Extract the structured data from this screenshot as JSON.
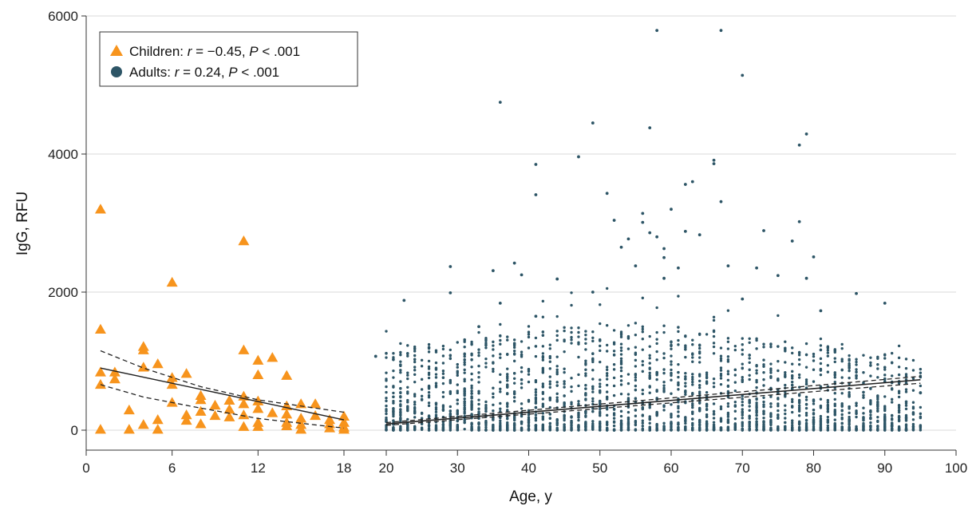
{
  "chart_data": {
    "type": "scatter",
    "xlabel": "Age, y",
    "ylabel": "IgG, RFU",
    "x_ticks": [
      {
        "value": 0,
        "label": "0"
      },
      {
        "value": 6,
        "label": "6"
      },
      {
        "value": 12,
        "label": "12"
      },
      {
        "value": 18,
        "label": "18"
      },
      {
        "value": 20,
        "label": "20"
      },
      {
        "value": 30,
        "label": "30"
      },
      {
        "value": 40,
        "label": "40"
      },
      {
        "value": 50,
        "label": "50"
      },
      {
        "value": 60,
        "label": "60"
      },
      {
        "value": 70,
        "label": "70"
      },
      {
        "value": 80,
        "label": "80"
      },
      {
        "value": 90,
        "label": "90"
      },
      {
        "value": 100,
        "label": "100"
      }
    ],
    "y_ticks": [
      {
        "value": 0,
        "label": "0"
      },
      {
        "value": 2000,
        "label": "2000"
      },
      {
        "value": 4000,
        "label": "4000"
      },
      {
        "value": 6000,
        "label": "6000"
      }
    ],
    "xlim": [
      0,
      100
    ],
    "ylim": [
      -250,
      6000
    ],
    "grid": "horizontal",
    "legend_position": "top-left",
    "colors": {
      "children": "#F7941D",
      "adults": "#2D5566",
      "grid": "#d9d9d9"
    },
    "legend": [
      {
        "marker": "triangle",
        "color": "#F7941D",
        "name": "Children",
        "stat_r_label": "r",
        "stat_r": " = −0.45, ",
        "stat_p_label": "P",
        "stat_p": " < .001"
      },
      {
        "marker": "circle",
        "color": "#2D5566",
        "name": "Adults",
        "stat_r_label": "r",
        "stat_r": " = 0.24, ",
        "stat_p_label": "P",
        "stat_p": " < .001"
      }
    ],
    "series": [
      {
        "name": "Children",
        "marker": "triangle",
        "points": [
          [
            1,
            3200
          ],
          [
            1,
            1460
          ],
          [
            1,
            840
          ],
          [
            1,
            660
          ],
          [
            1,
            10
          ],
          [
            2,
            840
          ],
          [
            2,
            740
          ],
          [
            3,
            290
          ],
          [
            3,
            10
          ],
          [
            4,
            1210
          ],
          [
            4,
            1160
          ],
          [
            4,
            910
          ],
          [
            4,
            80
          ],
          [
            5,
            960
          ],
          [
            5,
            150
          ],
          [
            5,
            10
          ],
          [
            6,
            2140
          ],
          [
            6,
            760
          ],
          [
            6,
            660
          ],
          [
            6,
            400
          ],
          [
            7,
            820
          ],
          [
            7,
            220
          ],
          [
            7,
            140
          ],
          [
            8,
            500
          ],
          [
            8,
            440
          ],
          [
            8,
            270
          ],
          [
            8,
            90
          ],
          [
            9,
            360
          ],
          [
            9,
            210
          ],
          [
            10,
            430
          ],
          [
            10,
            300
          ],
          [
            10,
            190
          ],
          [
            11,
            2740
          ],
          [
            11,
            1160
          ],
          [
            11,
            490
          ],
          [
            11,
            380
          ],
          [
            11,
            220
          ],
          [
            11,
            50
          ],
          [
            12,
            1010
          ],
          [
            12,
            800
          ],
          [
            12,
            420
          ],
          [
            12,
            310
          ],
          [
            12,
            110
          ],
          [
            12,
            50
          ],
          [
            13,
            1050
          ],
          [
            13,
            250
          ],
          [
            14,
            790
          ],
          [
            14,
            350
          ],
          [
            14,
            230
          ],
          [
            14,
            110
          ],
          [
            14,
            60
          ],
          [
            15,
            380
          ],
          [
            15,
            170
          ],
          [
            15,
            80
          ],
          [
            15,
            10
          ],
          [
            16,
            380
          ],
          [
            16,
            210
          ],
          [
            17,
            150
          ],
          [
            17,
            90
          ],
          [
            17,
            30
          ],
          [
            18,
            200
          ],
          [
            18,
            110
          ],
          [
            18,
            40
          ],
          [
            18,
            10
          ]
        ],
        "fit": {
          "x": [
            1,
            18
          ],
          "y": [
            900,
            150
          ]
        },
        "ci_upper": {
          "x": [
            1,
            4,
            8,
            12,
            18
          ],
          "y": [
            1150,
            900,
            630,
            440,
            260
          ]
        },
        "ci_lower": {
          "x": [
            1,
            4,
            8,
            12,
            18
          ],
          "y": [
            660,
            480,
            320,
            170,
            30
          ]
        }
      },
      {
        "name": "Adults",
        "marker": "circle",
        "points": [
          [
            19.5,
            1070
          ],
          [
            22.5,
            1880
          ],
          [
            29,
            2370
          ],
          [
            29,
            1990
          ],
          [
            33,
            1500
          ],
          [
            35,
            2310
          ],
          [
            36,
            4750
          ],
          [
            36,
            1840
          ],
          [
            38,
            2420
          ],
          [
            39,
            2250
          ],
          [
            41,
            3850
          ],
          [
            41,
            3410
          ],
          [
            41,
            1650
          ],
          [
            44,
            2190
          ],
          [
            47,
            3960
          ],
          [
            49,
            4450
          ],
          [
            49,
            2000
          ],
          [
            51,
            3430
          ],
          [
            52,
            3040
          ],
          [
            53,
            2650
          ],
          [
            54,
            2770
          ],
          [
            55,
            2380
          ],
          [
            56,
            3140
          ],
          [
            56,
            3010
          ],
          [
            57,
            4380
          ],
          [
            57,
            2860
          ],
          [
            58,
            5790
          ],
          [
            58,
            2800
          ],
          [
            59,
            2630
          ],
          [
            59,
            2500
          ],
          [
            59,
            2200
          ],
          [
            60,
            3200
          ],
          [
            61,
            2350
          ],
          [
            62,
            3560
          ],
          [
            62,
            2880
          ],
          [
            63,
            3600
          ],
          [
            64,
            2830
          ],
          [
            66,
            3910
          ],
          [
            66,
            3860
          ],
          [
            67,
            5790
          ],
          [
            67,
            3310
          ],
          [
            68,
            2380
          ],
          [
            70,
            5140
          ],
          [
            70,
            1900
          ],
          [
            72,
            2350
          ],
          [
            73,
            2890
          ],
          [
            75,
            2240
          ],
          [
            77,
            2740
          ],
          [
            78,
            4130
          ],
          [
            78,
            3020
          ],
          [
            79,
            4290
          ],
          [
            79,
            2200
          ],
          [
            80,
            2510
          ],
          [
            81,
            1730
          ],
          [
            86,
            1980
          ],
          [
            90,
            1840
          ],
          [
            91,
            60
          ],
          [
            95,
            540
          ]
        ],
        "dense_cloud": {
          "x_range": [
            20,
            95
          ],
          "base_rfu": 0,
          "typical_spread_rfu": 900,
          "point_count": 2500
        },
        "fit": {
          "x": [
            20,
            95
          ],
          "y": [
            90,
            730
          ]
        },
        "ci_upper": {
          "x": [
            20,
            95
          ],
          "y": [
            110,
            780
          ]
        },
        "ci_lower": {
          "x": [
            20,
            95
          ],
          "y": [
            70,
            680
          ]
        }
      }
    ]
  }
}
